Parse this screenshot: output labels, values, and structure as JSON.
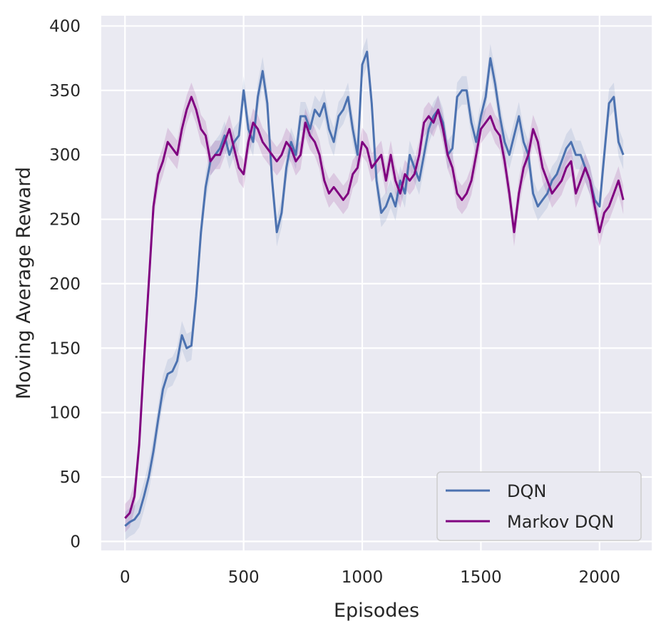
{
  "chart_data": {
    "type": "line",
    "title": "",
    "xlabel": "Episodes",
    "ylabel": "Moving Average Reward",
    "xlim": [
      -100,
      2220
    ],
    "ylim": [
      -7,
      408
    ],
    "xticks": [
      0,
      500,
      1000,
      1500,
      2000
    ],
    "yticks": [
      0,
      50,
      100,
      150,
      200,
      250,
      300,
      350,
      400
    ],
    "grid": true,
    "legend_position": "bottom-right",
    "background_color": "#eaeaf2",
    "series": [
      {
        "name": "DQN",
        "color": "#4c72b0",
        "x": [
          0,
          20,
          40,
          60,
          80,
          100,
          120,
          140,
          160,
          180,
          200,
          220,
          240,
          260,
          280,
          300,
          320,
          340,
          360,
          380,
          400,
          420,
          440,
          460,
          480,
          500,
          520,
          540,
          560,
          580,
          600,
          620,
          640,
          660,
          680,
          700,
          720,
          740,
          760,
          780,
          800,
          820,
          840,
          860,
          880,
          900,
          920,
          940,
          960,
          980,
          1000,
          1020,
          1040,
          1060,
          1080,
          1100,
          1120,
          1140,
          1160,
          1180,
          1200,
          1220,
          1240,
          1260,
          1280,
          1300,
          1320,
          1340,
          1360,
          1380,
          1400,
          1420,
          1440,
          1460,
          1480,
          1500,
          1520,
          1540,
          1560,
          1580,
          1600,
          1620,
          1640,
          1660,
          1680,
          1700,
          1720,
          1740,
          1760,
          1780,
          1800,
          1820,
          1840,
          1860,
          1880,
          1900,
          1920,
          1940,
          1960,
          1980,
          2000,
          2020,
          2040,
          2060,
          2080,
          2100
        ],
        "y": [
          12,
          15,
          17,
          22,
          35,
          50,
          70,
          95,
          118,
          130,
          132,
          140,
          160,
          150,
          152,
          190,
          240,
          275,
          295,
          300,
          305,
          315,
          300,
          310,
          315,
          350,
          320,
          310,
          345,
          365,
          340,
          280,
          240,
          255,
          290,
          310,
          300,
          330,
          330,
          320,
          335,
          330,
          340,
          320,
          310,
          330,
          335,
          345,
          320,
          300,
          370,
          380,
          340,
          280,
          255,
          260,
          270,
          260,
          280,
          270,
          300,
          290,
          280,
          300,
          320,
          330,
          335,
          325,
          300,
          305,
          345,
          350,
          350,
          325,
          310,
          330,
          345,
          375,
          355,
          330,
          310,
          300,
          315,
          330,
          310,
          300,
          270,
          260,
          265,
          270,
          280,
          285,
          295,
          305,
          310,
          300,
          300,
          290,
          280,
          265,
          260,
          300,
          340,
          345,
          310,
          300
        ]
      },
      {
        "name": "Markov DQN",
        "color": "#800080",
        "x": [
          0,
          20,
          40,
          60,
          80,
          100,
          120,
          140,
          160,
          180,
          200,
          220,
          240,
          260,
          280,
          300,
          320,
          340,
          360,
          380,
          400,
          420,
          440,
          460,
          480,
          500,
          520,
          540,
          560,
          580,
          600,
          620,
          640,
          660,
          680,
          700,
          720,
          740,
          760,
          780,
          800,
          820,
          840,
          860,
          880,
          900,
          920,
          940,
          960,
          980,
          1000,
          1020,
          1040,
          1060,
          1080,
          1100,
          1120,
          1140,
          1160,
          1180,
          1200,
          1220,
          1240,
          1260,
          1280,
          1300,
          1320,
          1340,
          1360,
          1380,
          1400,
          1420,
          1440,
          1460,
          1480,
          1500,
          1520,
          1540,
          1560,
          1580,
          1600,
          1620,
          1640,
          1660,
          1680,
          1700,
          1720,
          1740,
          1760,
          1780,
          1800,
          1820,
          1840,
          1860,
          1880,
          1900,
          1920,
          1940,
          1960,
          1980,
          2000,
          2020,
          2040,
          2060,
          2080,
          2100
        ],
        "y": [
          18,
          22,
          35,
          75,
          140,
          200,
          260,
          285,
          295,
          310,
          305,
          300,
          320,
          335,
          345,
          335,
          320,
          315,
          295,
          300,
          300,
          310,
          320,
          305,
          290,
          285,
          310,
          325,
          320,
          310,
          305,
          300,
          295,
          300,
          310,
          305,
          295,
          300,
          325,
          315,
          310,
          300,
          280,
          270,
          275,
          270,
          265,
          270,
          285,
          290,
          310,
          305,
          290,
          295,
          300,
          280,
          300,
          280,
          270,
          285,
          280,
          285,
          300,
          325,
          330,
          325,
          335,
          320,
          300,
          290,
          270,
          265,
          270,
          280,
          300,
          320,
          325,
          330,
          320,
          315,
          295,
          270,
          240,
          270,
          290,
          300,
          320,
          310,
          290,
          280,
          270,
          275,
          280,
          290,
          295,
          270,
          280,
          290,
          280,
          260,
          240,
          255,
          260,
          270,
          280,
          265
        ]
      }
    ]
  }
}
